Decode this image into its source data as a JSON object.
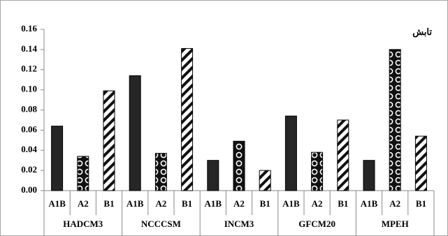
{
  "chart_data": {
    "type": "bar",
    "title": "تابش",
    "categories": [
      "HADCM3",
      "NCCCSM",
      "INCM3",
      "GFCM20",
      "MPEH"
    ],
    "series": [
      {
        "name": "A1B",
        "color": "#262626",
        "pattern": "solid",
        "values": [
          0.064,
          0.114,
          0.03,
          0.074,
          0.03
        ]
      },
      {
        "name": "A2",
        "color": "#262626",
        "pattern": "dots",
        "values": [
          0.034,
          0.037,
          0.049,
          0.038,
          0.14
        ]
      },
      {
        "name": "B1",
        "color": "#262626",
        "pattern": "stripes",
        "values": [
          0.099,
          0.141,
          0.02,
          0.07,
          0.054
        ]
      }
    ],
    "ylim": [
      0,
      0.16
    ],
    "yticks": [
      {
        "value": 0,
        "label": "0.00"
      },
      0.02,
      0.04,
      0.06,
      0.08,
      {
        "value": 0.1,
        "label": "0.10"
      },
      0.12,
      0.14,
      0.16
    ],
    "grid": false
  }
}
